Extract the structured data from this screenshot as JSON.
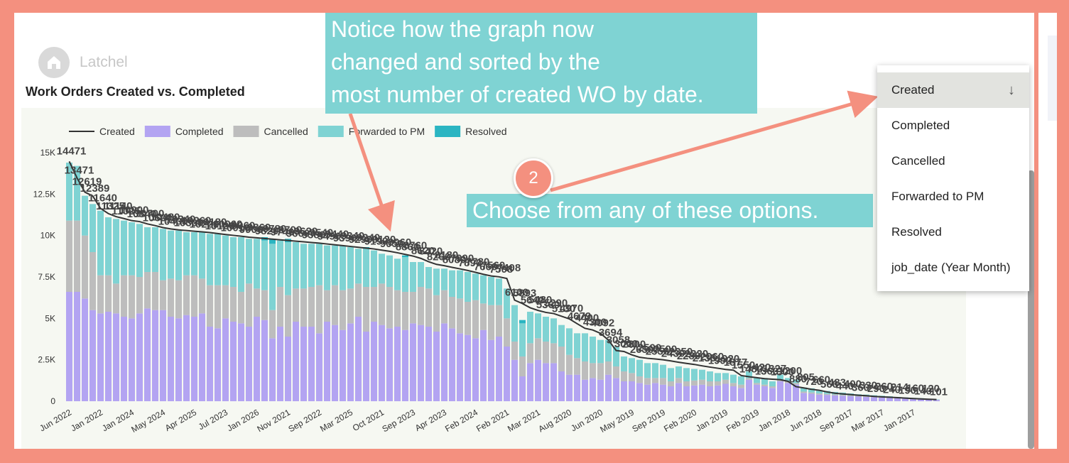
{
  "logo": "Latchel",
  "annotations": {
    "notice": [
      "Notice how the graph now",
      "changed and sorted by the",
      "most number of created WO by date."
    ],
    "step": "2",
    "choose": "Choose from any of these options."
  },
  "menu": {
    "items": [
      "Created",
      "Completed",
      "Cancelled",
      "Forwarded to PM",
      "Resolved",
      "job_date (Year Month)"
    ]
  },
  "chart_data": {
    "type": "bar",
    "title": "Work Orders Created vs. Completed",
    "stacked": true,
    "legend": "top-left",
    "grid": false,
    "categories": [
      "Jun 2022",
      null,
      null,
      null,
      "Jan 2022",
      null,
      null,
      null,
      "Jan 2024",
      null,
      null,
      null,
      "May 2024",
      null,
      null,
      null,
      "Apr 2025",
      null,
      null,
      null,
      "Jul 2023",
      null,
      null,
      null,
      "Jan 2026",
      null,
      null,
      null,
      "Nov 2021",
      null,
      null,
      null,
      "Sep 2022",
      null,
      null,
      null,
      "Mar 2025",
      null,
      null,
      null,
      "Oct 2021",
      null,
      null,
      null,
      "Sep 2023",
      null,
      null,
      null,
      "Apr 2023",
      null,
      null,
      null,
      "Feb 2024",
      null,
      null,
      null,
      "Feb 2021",
      null,
      null,
      null,
      "Mar 2021",
      null,
      null,
      null,
      "Aug 2020",
      null,
      null,
      null,
      "Jun 2020",
      null,
      null,
      null,
      "May 2019",
      null,
      null,
      null,
      "Sep 2019",
      null,
      null,
      null,
      "Feb 2020",
      null,
      null,
      null,
      "Jan 2019",
      null,
      null,
      null,
      "Feb 2019",
      null,
      null,
      null,
      "Jan 2018",
      null,
      null,
      null,
      "Jun 2018",
      null,
      null,
      null,
      "Sep 2017",
      null,
      null,
      null,
      "Mar 2017",
      null,
      null,
      null,
      "Jan 2017",
      null,
      null,
      null
    ],
    "ylim": [
      0,
      15000
    ],
    "yticks": [
      0,
      {
        "value": 2500,
        "label": "2.5K"
      },
      {
        "value": 5000,
        "label": "5K"
      },
      {
        "value": 7500,
        "label": "7.5K"
      },
      {
        "value": 10000,
        "label": "10K"
      },
      {
        "value": 12500,
        "label": "12.5K"
      },
      {
        "value": 15000,
        "label": "15K"
      }
    ],
    "series": [
      {
        "name": "Created",
        "type": "line",
        "color": "#333333",
        "values": [
          14471,
          13471,
          12619,
          12389,
          11640,
          11325,
          11140,
          11025,
          10900,
          10840,
          10700,
          10600,
          10480,
          10400,
          10340,
          10300,
          10260,
          10220,
          10180,
          10120,
          10060,
          10010,
          9960,
          9900,
          9860,
          9820,
          9780,
          9740,
          9700,
          9660,
          9620,
          9580,
          9540,
          9490,
          9440,
          9390,
          9340,
          9290,
          9240,
          9190,
          9120,
          9050,
          8960,
          8860,
          8760,
          8620,
          8420,
          8260,
          8180,
          8080,
          7990,
          7890,
          7780,
          7660,
          7560,
          7508,
          7408,
          6100,
          5893,
          5640,
          5480,
          5360,
          5290,
          5130,
          4970,
          4679,
          4400,
          4300,
          4092,
          3694,
          3058,
          3000,
          2800,
          2650,
          2590,
          2550,
          2500,
          2430,
          2350,
          2280,
          2220,
          2135,
          2060,
          1990,
          1920,
          1877,
          1550,
          1480,
          1420,
          1360,
          1327,
          1300,
          1200,
          880,
          805,
          720,
          660,
          560,
          483,
          440,
          400,
          360,
          330,
          290,
          260,
          240,
          214,
          190,
          160,
          140,
          120,
          101
        ]
      },
      {
        "name": "Completed",
        "type": "bar",
        "color": "#b3a4f2",
        "values": [
          6600,
          6600,
          6200,
          5500,
          5300,
          5400,
          5300,
          5100,
          5000,
          5300,
          5600,
          5500,
          5500,
          5100,
          5000,
          5200,
          5100,
          5300,
          4500,
          4400,
          5000,
          4800,
          4700,
          4500,
          5100,
          4900,
          3800,
          4500,
          3900,
          4800,
          4500,
          4500,
          4100,
          4800,
          4600,
          4300,
          4700,
          5100,
          4200,
          4800,
          4600,
          4400,
          4500,
          4300,
          4700,
          4600,
          4500,
          4200,
          4700,
          4400,
          4100,
          4000,
          3800,
          4300,
          3700,
          3900,
          3300,
          2500,
          1500,
          2300,
          2500,
          2300,
          2300,
          1800,
          1600,
          1600,
          1300,
          1400,
          1300,
          1600,
          1400,
          1200,
          1200,
          1100,
          1000,
          1100,
          1000,
          900,
          1100,
          900,
          950,
          1000,
          900,
          950,
          1050,
          900,
          800,
          1300,
          1000,
          900,
          800,
          1200,
          1100,
          1000,
          500,
          450,
          400,
          380,
          350,
          330,
          300,
          280,
          260,
          240,
          220,
          200,
          180,
          160,
          140,
          120,
          100,
          80
        ]
      },
      {
        "name": "Cancelled",
        "type": "bar",
        "color": "#bdbdbd",
        "values": [
          4300,
          4300,
          3800,
          3500,
          2300,
          2200,
          1800,
          2500,
          2600,
          2200,
          2200,
          2300,
          1800,
          2300,
          2300,
          2400,
          2500,
          2100,
          2500,
          2600,
          2000,
          2100,
          1900,
          2600,
          1700,
          1800,
          1700,
          2400,
          2500,
          2000,
          2300,
          2400,
          2900,
          1900,
          2400,
          2400,
          2100,
          2000,
          2700,
          2100,
          2500,
          2500,
          2200,
          2300,
          1900,
          2300,
          2300,
          2200,
          2000,
          1900,
          2100,
          2000,
          2300,
          1600,
          2100,
          1900,
          1700,
          1100,
          1200,
          1200,
          1300,
          1300,
          1200,
          1500,
          1200,
          1000,
          1100,
          900,
          1000,
          800,
          700,
          600,
          500,
          400,
          400,
          300,
          400,
          300,
          300,
          300,
          300,
          300,
          300,
          250,
          250,
          200,
          200,
          100,
          100,
          100,
          100,
          100,
          100,
          100,
          80,
          80,
          70,
          60,
          60,
          50,
          50,
          40,
          40,
          30,
          30,
          30,
          20,
          20,
          20,
          20,
          10,
          10
        ]
      },
      {
        "name": "Forwarded to PM",
        "type": "bar",
        "color": "#7fd3d3",
        "values": [
          3500,
          3300,
          2400,
          2900,
          3900,
          3500,
          3900,
          3300,
          3200,
          3200,
          2700,
          2700,
          3100,
          2900,
          3000,
          2600,
          2600,
          2800,
          3100,
          3100,
          3000,
          3000,
          3300,
          2700,
          3000,
          3000,
          4000,
          2800,
          3200,
          2800,
          2700,
          2600,
          2500,
          2700,
          2400,
          2700,
          2500,
          2100,
          2300,
          2200,
          1800,
          1900,
          1900,
          2100,
          1800,
          1500,
          1300,
          1600,
          1300,
          1600,
          1700,
          1800,
          1600,
          1700,
          1700,
          1600,
          1800,
          2200,
          2000,
          1900,
          1500,
          1500,
          1500,
          1300,
          1600,
          1500,
          1700,
          1600,
          1400,
          1300,
          1200,
          900,
          900,
          1000,
          900,
          900,
          800,
          800,
          700,
          800,
          700,
          600,
          600,
          500,
          400,
          500,
          500,
          400,
          300,
          400,
          300,
          300,
          200,
          200,
          250,
          250,
          200,
          180,
          150,
          140,
          120,
          100,
          100,
          90,
          80,
          70,
          60,
          50,
          40,
          40,
          30,
          20
        ]
      },
      {
        "name": "Resolved",
        "type": "bar",
        "color": "#2bb5c2",
        "values": [
          0,
          0,
          0,
          0,
          0,
          0,
          0,
          0,
          0,
          0,
          0,
          0,
          0,
          0,
          0,
          0,
          0,
          0,
          0,
          0,
          0,
          0,
          0,
          0,
          0,
          200,
          300,
          0,
          200,
          0,
          0,
          0,
          0,
          0,
          0,
          0,
          0,
          0,
          100,
          0,
          0,
          0,
          0,
          100,
          0,
          0,
          0,
          0,
          0,
          0,
          0,
          0,
          0,
          0,
          0,
          0,
          0,
          0,
          200,
          0,
          0,
          0,
          0,
          0,
          0,
          0,
          0,
          0,
          0,
          0,
          0,
          0,
          0,
          0,
          0,
          0,
          0,
          0,
          0,
          0,
          0,
          0,
          0,
          0,
          0,
          0,
          0,
          0,
          0,
          0,
          0,
          0,
          0,
          0,
          0,
          0,
          0,
          0,
          0,
          0,
          0,
          0,
          0,
          0,
          0,
          0,
          0,
          0,
          0,
          0,
          0,
          0
        ]
      }
    ]
  }
}
